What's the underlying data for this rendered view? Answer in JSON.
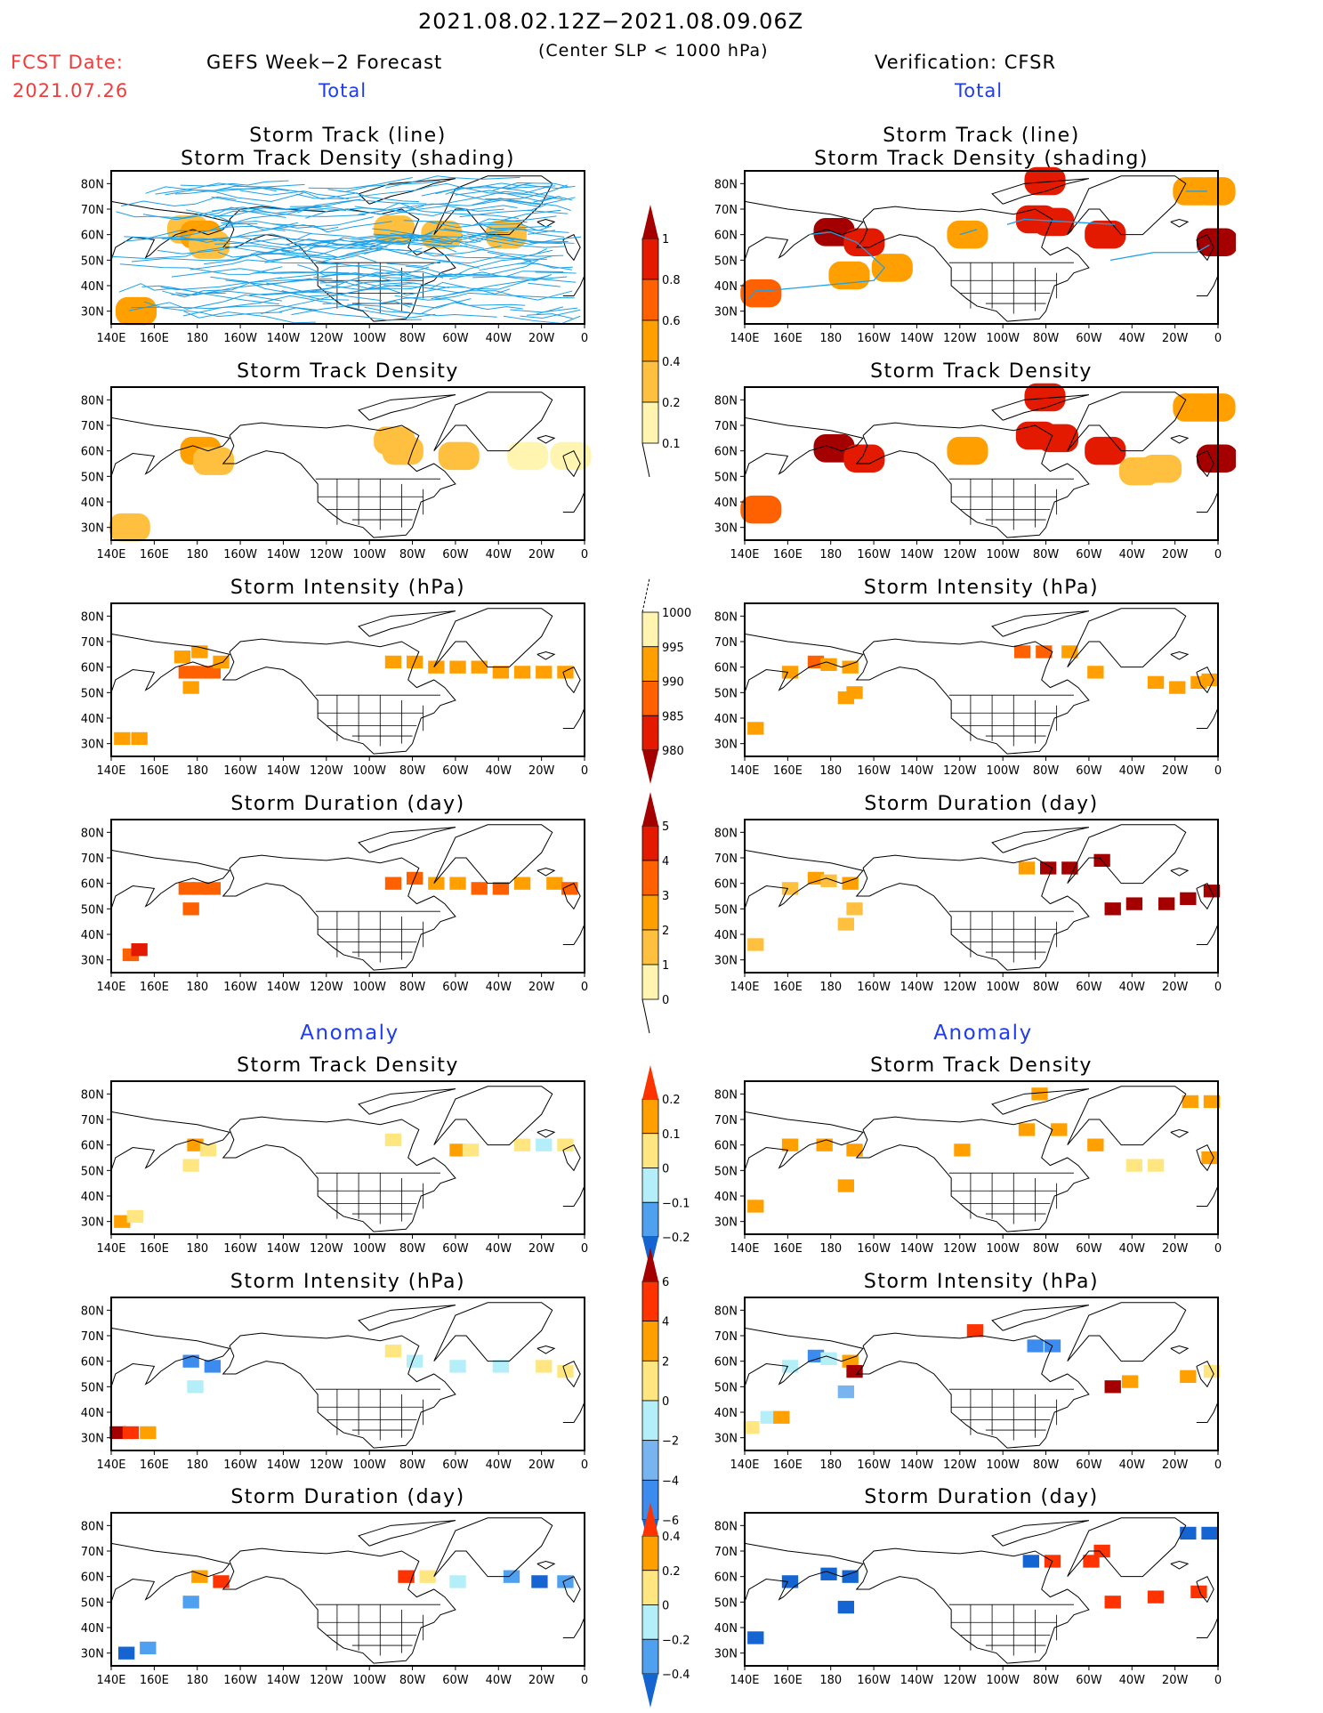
{
  "header": {
    "period": "2021.08.02.12Z−2021.08.09.06Z",
    "criterion": "(Center SLP < 1000 hPa)",
    "fcst_label": "FCST Date:",
    "fcst_date": "2021.07.26",
    "left_title": "GEFS Week−2 Forecast",
    "right_title": "Verification: CFSR",
    "section_total": "Total",
    "section_anomaly": "Anomaly"
  },
  "axes": {
    "lon_ticks": [
      "140E",
      "160E",
      "180",
      "160W",
      "140W",
      "120W",
      "100W",
      "80W",
      "60W",
      "40W",
      "20W",
      "0"
    ],
    "lat_ticks": [
      "80N",
      "70N",
      "60N",
      "50N",
      "40N",
      "30N"
    ],
    "lon_range_deg_east": [
      140,
      360
    ],
    "lat_range": [
      25,
      85
    ]
  },
  "colorbars": [
    {
      "name": "track-density",
      "labels": [
        "1",
        "0.8",
        "0.6",
        "0.4",
        "0.2",
        "0.1"
      ],
      "colors": [
        "#a50000",
        "#e31a00",
        "#ff6000",
        "#ffa000",
        "#ffc040",
        "#fff5b0"
      ]
    },
    {
      "name": "intensity",
      "labels": [
        "1000",
        "995",
        "990",
        "985",
        "980"
      ],
      "colors": [
        "#fff5b0",
        "#ffa000",
        "#ff6000",
        "#e31a00",
        "#a50000"
      ]
    },
    {
      "name": "duration",
      "labels": [
        "5",
        "4",
        "3",
        "2",
        "1",
        "0"
      ],
      "colors": [
        "#a50000",
        "#e31a00",
        "#ff6000",
        "#ffa000",
        "#ffc040",
        "#fff5b0"
      ]
    },
    {
      "name": "anom-density",
      "labels": [
        "0.2",
        "0.1",
        "0",
        "−0.1",
        "−0.2"
      ],
      "colors": [
        "#ff3300",
        "#ffa000",
        "#ffe680",
        "#b4eef8",
        "#50a0f0",
        "#1464d2"
      ]
    },
    {
      "name": "anom-intensity",
      "labels": [
        "6",
        "4",
        "2",
        "0",
        "−2",
        "−4",
        "−6"
      ],
      "colors": [
        "#a50000",
        "#ff3300",
        "#ffa000",
        "#ffe680",
        "#b4eef8",
        "#78b4f0",
        "#3c8cf0",
        "#1464d2"
      ]
    },
    {
      "name": "anom-duration",
      "labels": [
        "0.4",
        "0.2",
        "0",
        "−0.2",
        "−0.4"
      ],
      "colors": [
        "#ff3300",
        "#ffa000",
        "#ffe680",
        "#b4eef8",
        "#50a0f0",
        "#1464d2"
      ]
    }
  ],
  "chart_data": [
    {
      "type": "heatmap",
      "panel": "forecast-total-track",
      "title": "Storm Track (line)\nStorm Track Density (shading)",
      "title_lines": [
        "Storm Track (line)",
        "Storm Track Density (shading)"
      ],
      "tracks": "many",
      "cells": [
        [
          172,
          62,
          0.3
        ],
        [
          178,
          60,
          0.5
        ],
        [
          182,
          56,
          0.3
        ],
        [
          268,
          62,
          0.2
        ],
        [
          290,
          60,
          0.3
        ],
        [
          320,
          60,
          0.2
        ],
        [
          148,
          30,
          0.4
        ]
      ]
    },
    {
      "type": "heatmap",
      "panel": "verification-total-track",
      "title_lines": [
        "Storm Track (line)",
        "Storm Track Density (shading)"
      ],
      "tracks": [
        [
          [
            142,
            35
          ],
          [
            145,
            38
          ],
          [
            150,
            38
          ],
          [
            200,
            42
          ],
          [
            205,
            47
          ],
          [
            192,
            57
          ],
          [
            180,
            61
          ],
          [
            170,
            60
          ]
        ],
        [
          [
            240,
            60
          ],
          [
            248,
            62
          ]
        ],
        [
          [
            262,
            64
          ],
          [
            270,
            66
          ],
          [
            290,
            65
          ],
          [
            312,
            64
          ]
        ],
        [
          [
            345,
            77
          ],
          [
            355,
            77
          ]
        ],
        [
          [
            310,
            50
          ],
          [
            330,
            53
          ],
          [
            350,
            53
          ],
          [
            356,
            56
          ]
        ]
      ],
      "cells": [
        [
          178,
          61,
          1.0
        ],
        [
          192,
          57,
          0.8
        ],
        [
          144,
          37,
          0.7
        ],
        [
          276,
          81,
          0.9
        ],
        [
          272,
          66,
          0.9
        ],
        [
          280,
          65,
          0.9
        ],
        [
          304,
          60,
          0.9
        ],
        [
          356,
          57,
          1.0
        ],
        [
          240,
          60,
          0.5
        ],
        [
          345,
          77,
          0.4
        ],
        [
          355,
          77,
          0.4
        ],
        [
          205,
          47,
          0.4
        ],
        [
          185,
          44,
          0.4
        ]
      ]
    },
    {
      "type": "heatmap",
      "panel": "forecast-total-density",
      "title": "Storm Track Density",
      "cells": [
        [
          178,
          60,
          0.4
        ],
        [
          184,
          56,
          0.3
        ],
        [
          145,
          30,
          0.3
        ],
        [
          272,
          60,
          0.3
        ],
        [
          298,
          58,
          0.3
        ],
        [
          268,
          64,
          0.2
        ],
        [
          330,
          58,
          0.1
        ],
        [
          350,
          58,
          0.1
        ]
      ]
    },
    {
      "type": "heatmap",
      "panel": "verification-total-density",
      "title": "Storm Track Density",
      "cells": [
        [
          178,
          61,
          1.0
        ],
        [
          192,
          57,
          0.8
        ],
        [
          144,
          37,
          0.6
        ],
        [
          276,
          81,
          0.9
        ],
        [
          272,
          66,
          0.9
        ],
        [
          282,
          65,
          0.9
        ],
        [
          304,
          60,
          0.9
        ],
        [
          356,
          57,
          1.0
        ],
        [
          240,
          60,
          0.5
        ],
        [
          345,
          77,
          0.4
        ],
        [
          355,
          77,
          0.4
        ],
        [
          330,
          53,
          0.3
        ],
        [
          320,
          52,
          0.3
        ]
      ]
    },
    {
      "type": "heatmap",
      "panel": "forecast-total-intensity",
      "title": "Storm Intensity (hPa)",
      "cells": [
        [
          174,
          58,
          990
        ],
        [
          180,
          58,
          990
        ],
        [
          186,
          58,
          990
        ],
        [
          172,
          64,
          995
        ],
        [
          180,
          66,
          995
        ],
        [
          190,
          62,
          995
        ],
        [
          176,
          52,
          995
        ],
        [
          144,
          32,
          995
        ],
        [
          152,
          32,
          995
        ],
        [
          270,
          62,
          995
        ],
        [
          280,
          62,
          995
        ],
        [
          290,
          60,
          995
        ],
        [
          300,
          60,
          995
        ],
        [
          310,
          60,
          995
        ],
        [
          320,
          58,
          995
        ],
        [
          330,
          58,
          995
        ],
        [
          340,
          58,
          995
        ],
        [
          350,
          58,
          995
        ]
      ]
    },
    {
      "type": "heatmap",
      "panel": "verification-total-intensity",
      "title": "Storm Intensity (hPa)",
      "cells": [
        [
          160,
          58,
          995
        ],
        [
          172,
          62,
          990
        ],
        [
          178,
          61,
          995
        ],
        [
          188,
          60,
          995
        ],
        [
          190,
          50,
          995
        ],
        [
          186,
          48,
          995
        ],
        [
          144,
          36,
          995
        ],
        [
          268,
          66,
          990
        ],
        [
          278,
          66,
          990
        ],
        [
          290,
          66,
          995
        ],
        [
          302,
          58,
          995
        ],
        [
          330,
          54,
          995
        ],
        [
          340,
          52,
          995
        ],
        [
          350,
          54,
          995
        ],
        [
          355,
          55,
          995
        ]
      ]
    },
    {
      "type": "heatmap",
      "panel": "forecast-total-duration",
      "title": "Storm Duration (day)",
      "cells": [
        [
          174,
          58,
          3
        ],
        [
          180,
          58,
          3
        ],
        [
          186,
          58,
          3
        ],
        [
          176,
          50,
          3
        ],
        [
          148,
          32,
          3
        ],
        [
          152,
          34,
          4
        ],
        [
          270,
          60,
          3
        ],
        [
          280,
          62,
          3
        ],
        [
          290,
          60,
          2
        ],
        [
          300,
          60,
          2
        ],
        [
          310,
          58,
          3
        ],
        [
          320,
          58,
          3
        ],
        [
          330,
          60,
          2
        ],
        [
          345,
          60,
          2
        ],
        [
          352,
          58,
          3
        ]
      ]
    },
    {
      "type": "heatmap",
      "panel": "verification-total-duration",
      "title": "Storm Duration (day)",
      "cells": [
        [
          160,
          58,
          1
        ],
        [
          172,
          62,
          2
        ],
        [
          178,
          61,
          1
        ],
        [
          188,
          60,
          2
        ],
        [
          190,
          50,
          1
        ],
        [
          186,
          44,
          1
        ],
        [
          144,
          36,
          1
        ],
        [
          270,
          66,
          2
        ],
        [
          280,
          66,
          5
        ],
        [
          290,
          66,
          5
        ],
        [
          305,
          69,
          5
        ],
        [
          310,
          50,
          5
        ],
        [
          320,
          52,
          5
        ],
        [
          335,
          52,
          5
        ],
        [
          345,
          54,
          5
        ],
        [
          356,
          57,
          5
        ]
      ]
    },
    {
      "type": "heatmap",
      "panel": "forecast-anomaly-density",
      "title": "Storm Track Density",
      "cells": [
        [
          178,
          60,
          0.2
        ],
        [
          184,
          58,
          0.1
        ],
        [
          176,
          52,
          0.05
        ],
        [
          144,
          30,
          0.2
        ],
        [
          150,
          32,
          0.05
        ],
        [
          270,
          62,
          0.05
        ],
        [
          300,
          58,
          0.2
        ],
        [
          306,
          58,
          0.1
        ],
        [
          330,
          60,
          0.05
        ],
        [
          340,
          60,
          -0.05
        ],
        [
          350,
          60,
          0.05
        ]
      ]
    },
    {
      "type": "heatmap",
      "panel": "verification-anomaly-density",
      "title": "Storm Track Density",
      "cells": [
        [
          160,
          60,
          0.2
        ],
        [
          176,
          60,
          0.2
        ],
        [
          190,
          58,
          0.2
        ],
        [
          144,
          36,
          0.2
        ],
        [
          186,
          44,
          0.2
        ],
        [
          240,
          58,
          0.2
        ],
        [
          276,
          80,
          0.2
        ],
        [
          270,
          66,
          0.2
        ],
        [
          285,
          66,
          0.2
        ],
        [
          302,
          60,
          0.2
        ],
        [
          346,
          77,
          0.2
        ],
        [
          356,
          77,
          0.2
        ],
        [
          355,
          55,
          0.2
        ],
        [
          320,
          52,
          0.05
        ],
        [
          330,
          52,
          0.1
        ]
      ]
    },
    {
      "type": "heatmap",
      "panel": "forecast-anomaly-intensity",
      "title": "Storm Intensity (hPa)",
      "cells": [
        [
          176,
          60,
          -4
        ],
        [
          186,
          58,
          -4
        ],
        [
          178,
          50,
          -1
        ],
        [
          142,
          32,
          7
        ],
        [
          148,
          32,
          5
        ],
        [
          156,
          32,
          3
        ],
        [
          280,
          60,
          -1
        ],
        [
          300,
          58,
          -1
        ],
        [
          320,
          58,
          -1
        ],
        [
          340,
          58,
          1
        ],
        [
          350,
          56,
          1
        ],
        [
          270,
          64,
          1
        ]
      ]
    },
    {
      "type": "heatmap",
      "panel": "verification-anomaly-intensity",
      "title": "Storm Intensity (hPa)",
      "cells": [
        [
          160,
          58,
          -1
        ],
        [
          172,
          62,
          -5
        ],
        [
          178,
          61,
          -1
        ],
        [
          188,
          60,
          3
        ],
        [
          190,
          56,
          7
        ],
        [
          186,
          48,
          -3
        ],
        [
          142,
          34,
          1
        ],
        [
          150,
          38,
          -1
        ],
        [
          156,
          38,
          3
        ],
        [
          274,
          66,
          -5
        ],
        [
          282,
          66,
          -5
        ],
        [
          310,
          50,
          7
        ],
        [
          318,
          52,
          3
        ],
        [
          345,
          54,
          3
        ],
        [
          356,
          56,
          1
        ],
        [
          246,
          72,
          5
        ]
      ]
    },
    {
      "type": "heatmap",
      "panel": "forecast-anomaly-duration",
      "title": "Storm Duration (day)",
      "cells": [
        [
          180,
          60,
          0.3
        ],
        [
          190,
          58,
          0.5
        ],
        [
          176,
          50,
          -0.3
        ],
        [
          146,
          30,
          -0.5
        ],
        [
          156,
          32,
          -0.3
        ],
        [
          276,
          60,
          0.5
        ],
        [
          286,
          60,
          0.1
        ],
        [
          300,
          58,
          -0.1
        ],
        [
          325,
          60,
          -0.3
        ],
        [
          338,
          58,
          -0.5
        ],
        [
          350,
          58,
          -0.3
        ]
      ]
    },
    {
      "type": "heatmap",
      "panel": "verification-anomaly-duration",
      "title": "Storm Duration (day)",
      "cells": [
        [
          160,
          58,
          -0.5
        ],
        [
          178,
          61,
          -0.5
        ],
        [
          188,
          60,
          -0.5
        ],
        [
          186,
          48,
          -0.5
        ],
        [
          144,
          36,
          -0.5
        ],
        [
          272,
          66,
          -0.5
        ],
        [
          282,
          66,
          0.5
        ],
        [
          300,
          66,
          0.5
        ],
        [
          305,
          70,
          0.5
        ],
        [
          310,
          50,
          0.5
        ],
        [
          330,
          52,
          0.5
        ],
        [
          350,
          54,
          0.5
        ],
        [
          345,
          77,
          -0.5
        ],
        [
          355,
          77,
          -0.5
        ]
      ]
    }
  ]
}
